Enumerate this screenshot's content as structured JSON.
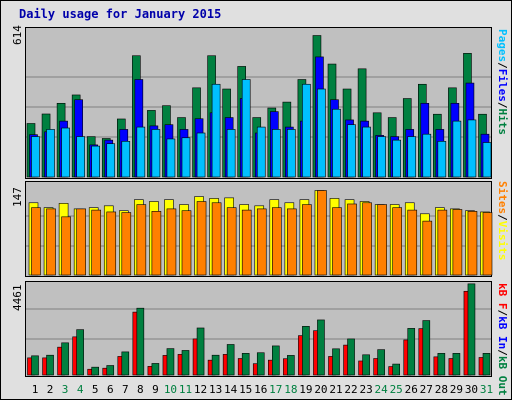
{
  "title": "Daily usage for January 2015",
  "colors": {
    "hits": "#00c0ff",
    "files": "#0000ff",
    "pages": "#008040",
    "visits": "#ffff00",
    "sites": "#ff8000",
    "kb_in": "#0000ff",
    "kb_out": "#008040",
    "kb_f": "#ff0000",
    "weekend_label": "#008040",
    "weekday_label": "#000000"
  },
  "legends": {
    "top": [
      {
        "text": "Pages",
        "color": "#00c0ff"
      },
      {
        "text": "Files",
        "color": "#0000ff"
      },
      {
        "text": "Hits",
        "color": "#008040"
      }
    ],
    "mid": [
      {
        "text": "Sites",
        "color": "#ff8000"
      },
      {
        "text": "Visits",
        "color": "#ffff00"
      }
    ],
    "bot": [
      {
        "text": "kB F",
        "color": "#ff0000"
      },
      {
        "text": "kB In",
        "color": "#0000ff"
      },
      {
        "text": "kB Out",
        "color": "#008040"
      }
    ],
    "separator": "/"
  },
  "chart_data": {
    "type": "bar",
    "title": "Daily usage for January 2015",
    "categories": [
      "1",
      "2",
      "3",
      "4",
      "5",
      "6",
      "7",
      "8",
      "9",
      "10",
      "11",
      "12",
      "13",
      "14",
      "15",
      "16",
      "17",
      "18",
      "19",
      "20",
      "21",
      "22",
      "23",
      "24",
      "25",
      "26",
      "27",
      "28",
      "29",
      "30",
      "31"
    ],
    "weekend_days": [
      "3",
      "4",
      "10",
      "11",
      "17",
      "18",
      "24",
      "25",
      "31"
    ],
    "panels": [
      {
        "name": "top",
        "ymax_label": "614",
        "ylim": [
          0,
          614
        ],
        "series": [
          {
            "name": "Hits",
            "color": "#008040",
            "values": [
              225,
              265,
              310,
              345,
              170,
              162,
              244,
              510,
              280,
              300,
              250,
              375,
              510,
              370,
              465,
              250,
              290,
              315,
              410,
              595,
              475,
              370,
              455,
              270,
              250,
              330,
              390,
              264,
              375,
              520,
              264
            ]
          },
          {
            "name": "Files",
            "color": "#0000ff",
            "values": [
              178,
              190,
              235,
              325,
              135,
              155,
              200,
              410,
              215,
              220,
              200,
              245,
              270,
              250,
              330,
              185,
              275,
              210,
              235,
              505,
              325,
              240,
              235,
              175,
              170,
              200,
              310,
              200,
              310,
              395,
              180
            ]
          },
          {
            "name": "Pages",
            "color": "#00c0ff",
            "values": [
              170,
              200,
              206,
              170,
              130,
              140,
              150,
              210,
              200,
              160,
              165,
              185,
              390,
              200,
              410,
              210,
              200,
              200,
              390,
              370,
              285,
              220,
              210,
              170,
              155,
              170,
              180,
              150,
              235,
              240,
              145
            ]
          }
        ]
      },
      {
        "name": "mid",
        "ymax_label": "147",
        "ylim": [
          0,
          147
        ],
        "series": [
          {
            "name": "Visits",
            "color": "#ffff00",
            "values": [
              118,
              110,
              117,
              108,
              110,
              113,
              105,
              123,
              120,
              123,
              115,
              128,
              125,
              126,
              115,
              113,
              123,
              118,
              123,
              138,
              125,
              123,
              120,
              115,
              115,
              118,
              100,
              110,
              108,
              105,
              103
            ]
          },
          {
            "name": "Sites",
            "color": "#ff8000",
            "values": [
              110,
              108,
              95,
              108,
              106,
              103,
              102,
              115,
              104,
              108,
              105,
              120,
              118,
              110,
              106,
              108,
              110,
              108,
              115,
              138,
              110,
              116,
              118,
              115,
              110,
              106,
              88,
              106,
              107,
              104,
              102
            ]
          }
        ]
      },
      {
        "name": "bot",
        "ymax_label": "4461",
        "ylim": [
          0,
          4461
        ],
        "series": [
          {
            "name": "kB F",
            "color": "#ff0000",
            "values": [
              830,
              830,
              1350,
              1850,
              280,
              330,
              900,
              3050,
              420,
              950,
              1000,
              1750,
              720,
              1000,
              800,
              550,
              720,
              790,
              1910,
              2150,
              900,
              1450,
              680,
              800,
              410,
              1700,
              2250,
              880,
              800,
              4060,
              850
            ]
          },
          {
            "name": "kB In",
            "color": "#0000ff",
            "values": [
              0,
              0,
              0,
              0,
              0,
              0,
              0,
              0,
              0,
              0,
              0,
              0,
              0,
              0,
              0,
              0,
              0,
              0,
              0,
              0,
              0,
              0,
              0,
              0,
              0,
              0,
              0,
              0,
              0,
              0,
              0
            ]
          },
          {
            "name": "kB Out",
            "color": "#008040",
            "values": [
              930,
              960,
              1560,
              2200,
              380,
              460,
              1120,
              3240,
              560,
              1280,
              1190,
              2280,
              960,
              1480,
              1050,
              1080,
              1410,
              950,
              2360,
              2670,
              1270,
              1750,
              980,
              1230,
              530,
              2260,
              2640,
              1050,
              1050,
              4420,
              1050
            ]
          }
        ]
      }
    ]
  }
}
